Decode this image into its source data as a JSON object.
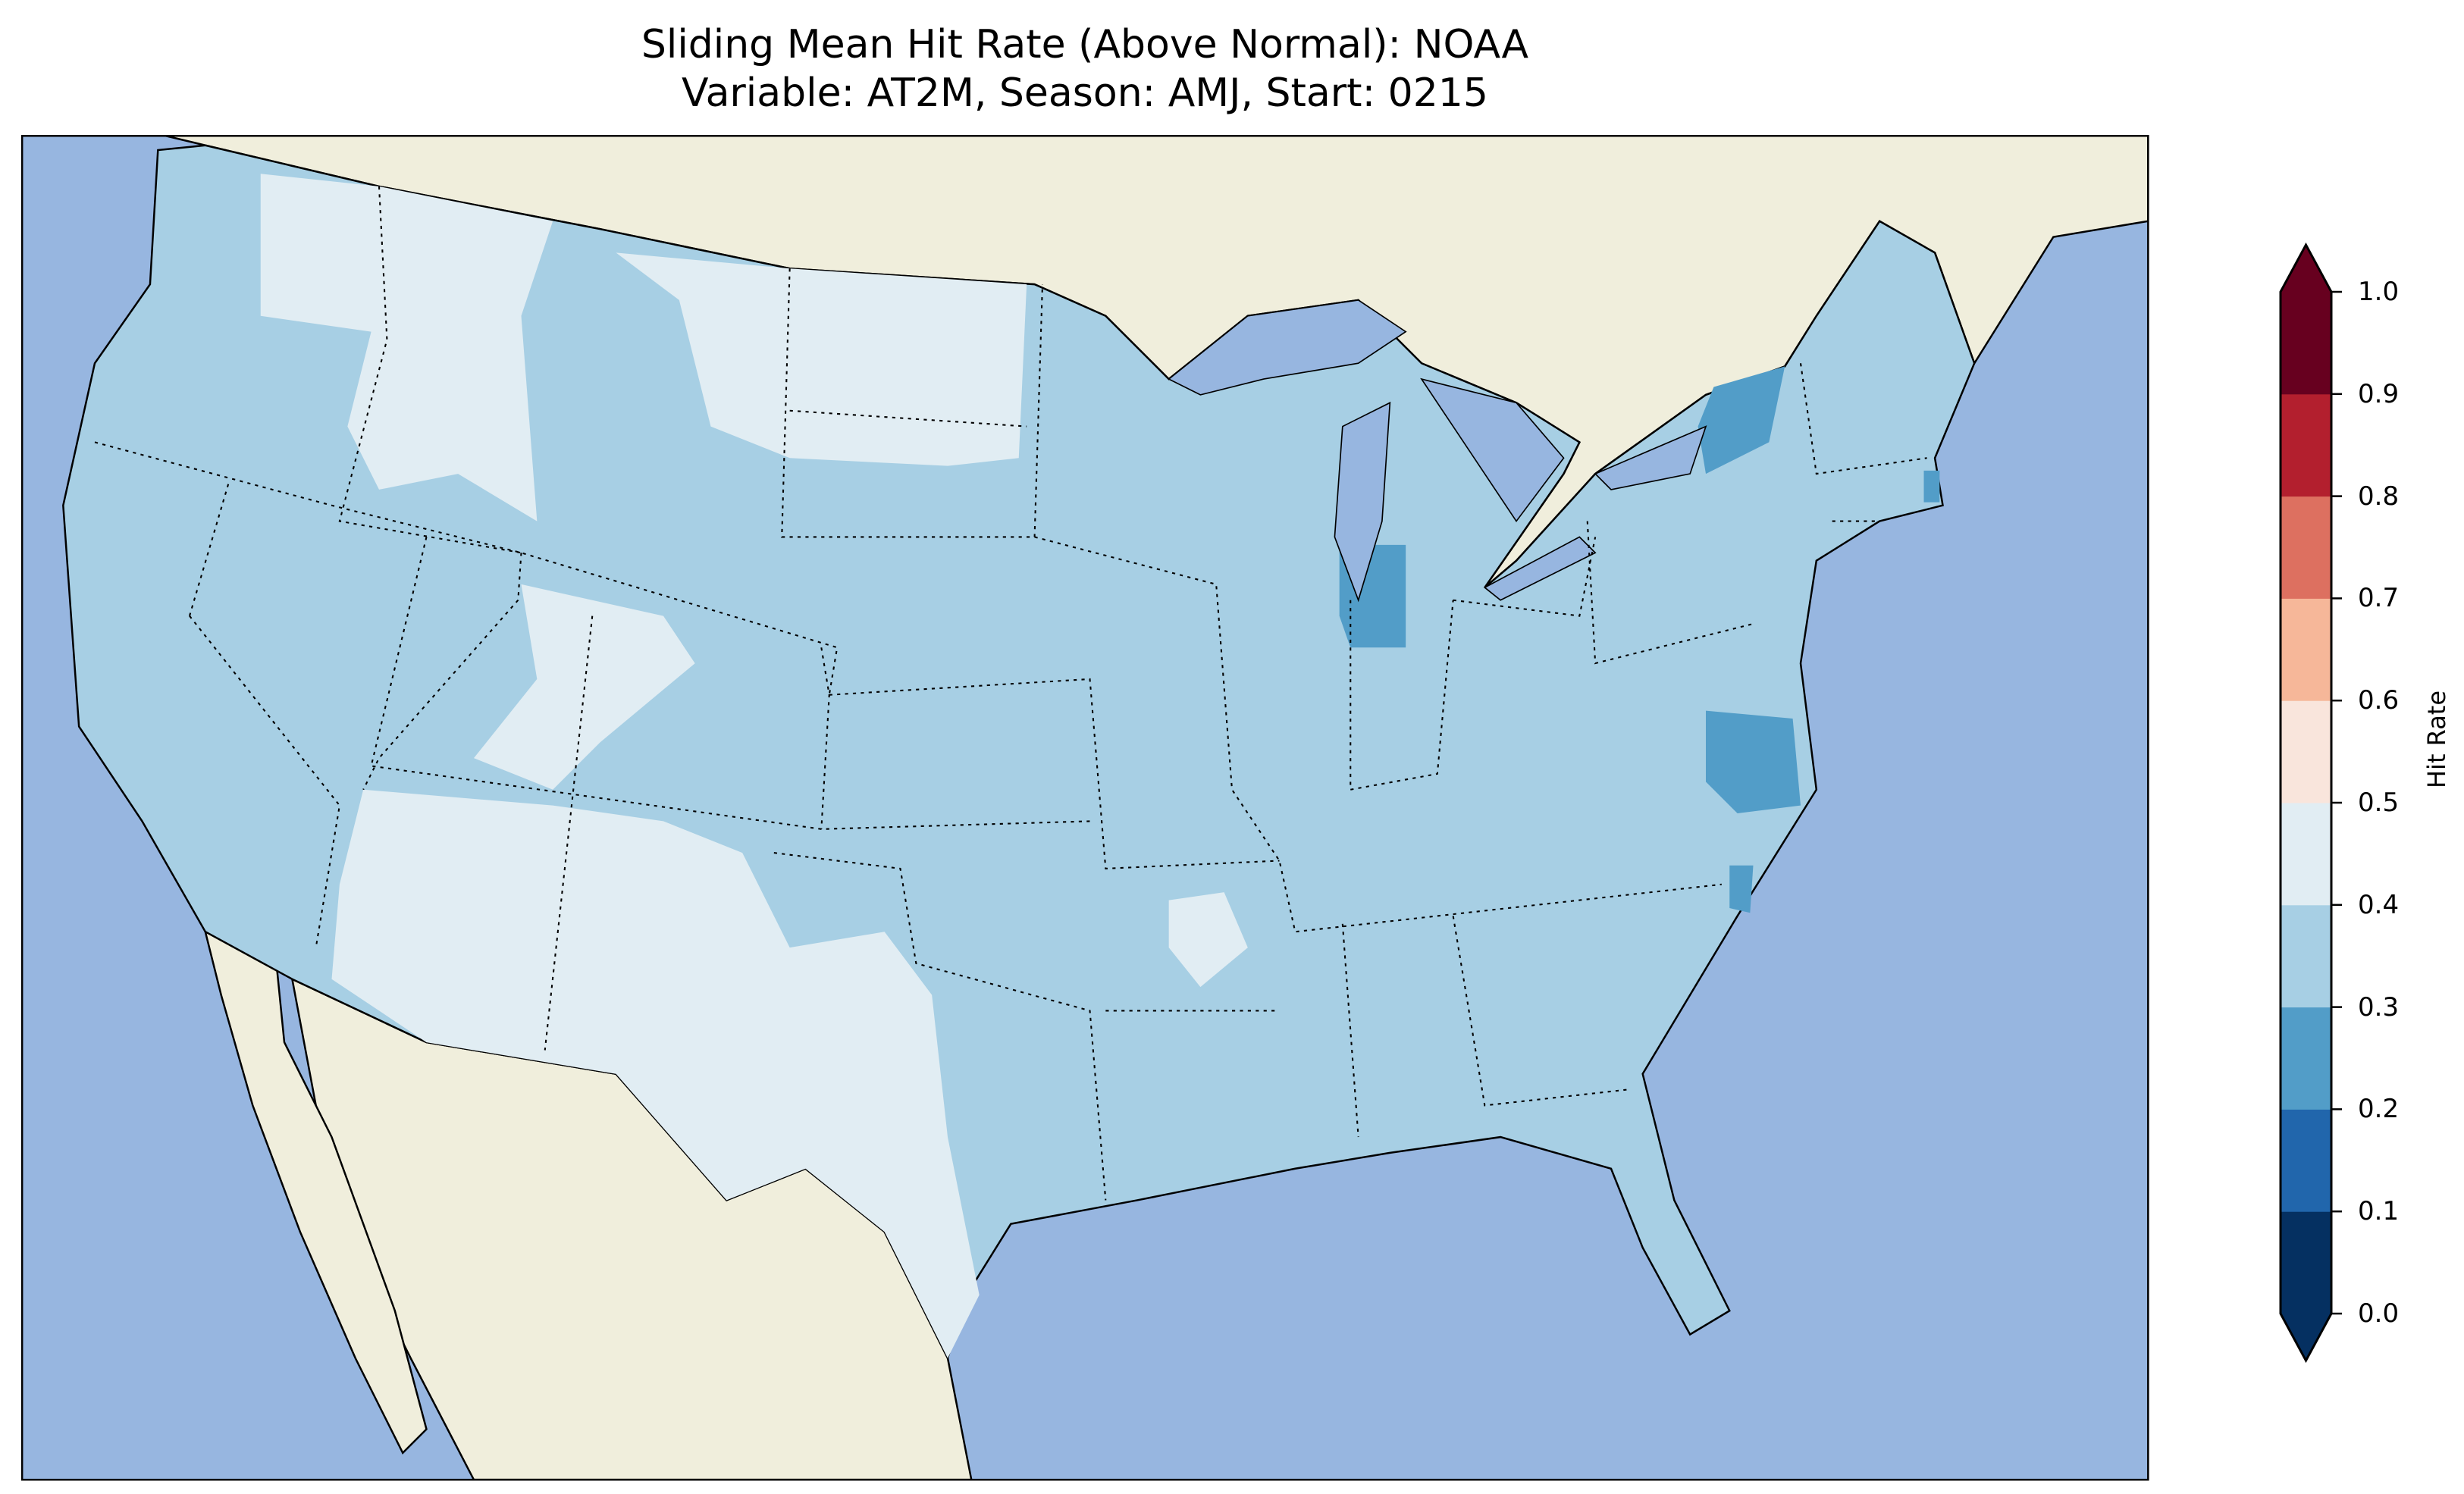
{
  "title": {
    "line1": "Sliding Mean Hit Rate (Above Normal): NOAA",
    "line2": "Variable: AT2M, Season: AMJ, Start: 0215"
  },
  "chart_data": {
    "type": "heatmap",
    "title": "Sliding Mean Hit Rate (Above Normal): NOAA — Variable: AT2M, Season: AMJ, Start: 0215",
    "region": "Contiguous United States",
    "colorbar": {
      "label": "Hit Rate",
      "range": [
        0.0,
        1.0
      ],
      "extend": "both",
      "ticks": [
        "0.0",
        "0.1",
        "0.2",
        "0.3",
        "0.4",
        "0.5",
        "0.6",
        "0.7",
        "0.8",
        "0.9",
        "1.0"
      ],
      "colors": [
        "#053061",
        "#2166ac",
        "#529dc8",
        "#a7cfe4",
        "#e1edf3",
        "#f9e5dc",
        "#f6b799",
        "#dd7060",
        "#b31f2e",
        "#67001f"
      ]
    },
    "dominant_value_range": [
      0.3,
      0.4
    ],
    "areas_0_4_to_0_5": [
      "Idaho/Western Montana",
      "Eastern Montana",
      "North Dakota",
      "Utah/Western Colorado",
      "Arizona",
      "New Mexico",
      "West Texas",
      "Arkansas (small)"
    ],
    "areas_0_2_to_0_3": [
      "Western New York",
      "Northern Indiana",
      "Eastern Virginia",
      "Eastern North Carolina",
      "Eastern Massachusetts"
    ],
    "land_color": "#f0eedc",
    "ocean_color": "#97b6e0"
  }
}
